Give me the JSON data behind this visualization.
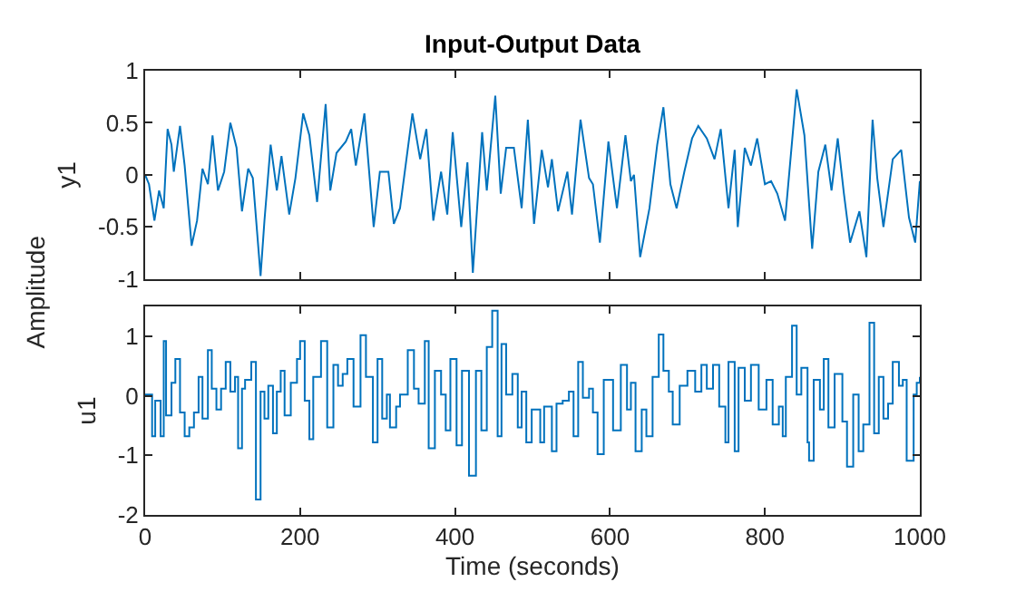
{
  "chart_data": [
    {
      "type": "line",
      "title": "Input-Output Data",
      "ylabel": "y1",
      "tick_labels": "y",
      "x": [
        0,
        5,
        12,
        18,
        24,
        29,
        34,
        37,
        45,
        51,
        60,
        67,
        74,
        81,
        87,
        94,
        102,
        110,
        118,
        125,
        133,
        139,
        149,
        154,
        162,
        170,
        176,
        186,
        194,
        204,
        212,
        222,
        233,
        239,
        247,
        259,
        266,
        272,
        283,
        295,
        303,
        314,
        321,
        329,
        345,
        355,
        363,
        372,
        382,
        390,
        397,
        408,
        416,
        423,
        435,
        441,
        452,
        459,
        466,
        476,
        486,
        494,
        502,
        512,
        520,
        525,
        533,
        545,
        551,
        562,
        573,
        578,
        587,
        598,
        609,
        620,
        627,
        631,
        639,
        651,
        661,
        669,
        678,
        686,
        696,
        706,
        714,
        725,
        735,
        743,
        753,
        761,
        765,
        774,
        782,
        790,
        800,
        808,
        816,
        826,
        841,
        851,
        861,
        869,
        878,
        886,
        894,
        902,
        910,
        922,
        931,
        939,
        945,
        953,
        965,
        976,
        986,
        994,
        1000
      ],
      "series": [
        {
          "color": "#0072bd",
          "values": [
            0,
            -0.09,
            -0.44,
            -0.15,
            -0.32,
            0.44,
            0.29,
            0.03,
            0.47,
            0.09,
            -0.68,
            -0.44,
            0.06,
            -0.09,
            0.38,
            -0.15,
            0.03,
            0.5,
            0.26,
            -0.35,
            0.06,
            -0.03,
            -0.97,
            -0.44,
            0.29,
            -0.15,
            0.18,
            -0.38,
            -0.03,
            0.59,
            0.38,
            -0.26,
            0.68,
            -0.15,
            0.21,
            0.32,
            0.44,
            0.09,
            0.59,
            -0.5,
            0.03,
            0.03,
            -0.47,
            -0.32,
            0.59,
            0.15,
            0.44,
            -0.44,
            0.03,
            -0.38,
            0.41,
            -0.5,
            0.12,
            -0.94,
            0.41,
            -0.15,
            0.76,
            -0.18,
            0.26,
            0.26,
            -0.32,
            0.53,
            -0.47,
            0.24,
            -0.12,
            0.15,
            -0.35,
            0.03,
            -0.38,
            0.53,
            -0.03,
            -0.09,
            -0.65,
            0.32,
            -0.32,
            0.38,
            -0.06,
            0,
            -0.79,
            -0.32,
            0.29,
            0.65,
            -0.09,
            -0.32,
            0.03,
            0.35,
            0.47,
            0.35,
            0.15,
            0.44,
            -0.32,
            0.24,
            -0.5,
            0.26,
            0.09,
            0.35,
            -0.09,
            -0.06,
            -0.18,
            -0.44,
            0.82,
            0.38,
            -0.71,
            0.03,
            0.29,
            -0.15,
            0.35,
            -0.18,
            -0.65,
            -0.35,
            -0.79,
            0.53,
            -0.03,
            -0.5,
            0.15,
            0.24,
            -0.41,
            -0.65,
            -0.06
          ]
        }
      ],
      "xlim": [
        0,
        1000
      ],
      "xticks": [
        {
          "value": 0,
          "label": null
        },
        {
          "value": 200,
          "label": null
        },
        {
          "value": 400,
          "label": null
        },
        {
          "value": 600,
          "label": null
        },
        {
          "value": 800,
          "label": null
        },
        {
          "value": 1000,
          "label": null
        }
      ],
      "ylim": [
        -1,
        1
      ],
      "yticks": [
        -1,
        -0.5,
        0,
        0.5,
        1
      ]
    },
    {
      "type": "step",
      "ylabel": "u1",
      "xlabel": "Time (seconds)",
      "annotations": [
        "Amplitude"
      ],
      "x": [
        0,
        5,
        9,
        13,
        20,
        24,
        27,
        34,
        39,
        45,
        51,
        57,
        63,
        69,
        74,
        81,
        86,
        92,
        98,
        104,
        110,
        116,
        120,
        125,
        129,
        137,
        143,
        149,
        154,
        159,
        165,
        170,
        175,
        180,
        188,
        196,
        200,
        206,
        212,
        217,
        227,
        235,
        243,
        249,
        255,
        261,
        269,
        278,
        285,
        294,
        300,
        306,
        312,
        316,
        324,
        329,
        339,
        347,
        353,
        361,
        366,
        374,
        382,
        388,
        394,
        402,
        409,
        418,
        427,
        434,
        441,
        448,
        455,
        460,
        466,
        474,
        481,
        486,
        492,
        499,
        510,
        515,
        525,
        531,
        539,
        547,
        553,
        559,
        565,
        573,
        578,
        584,
        592,
        604,
        614,
        622,
        627,
        633,
        641,
        647,
        655,
        663,
        669,
        676,
        681,
        690,
        700,
        710,
        718,
        725,
        733,
        741,
        749,
        753,
        761,
        766,
        774,
        782,
        792,
        802,
        810,
        818,
        823,
        827,
        835,
        841,
        847,
        855,
        857,
        863,
        871,
        876,
        882,
        890,
        900,
        906,
        914,
        921,
        927,
        935,
        941,
        947,
        953,
        959,
        965,
        973,
        978,
        983,
        992,
        996,
        1000
      ],
      "series": [
        {
          "color": "#0072bd",
          "values": [
            0.02,
            0.02,
            -0.68,
            -0.08,
            -0.68,
            0.92,
            -0.33,
            0.22,
            0.62,
            -0.28,
            -0.68,
            -0.53,
            -0.28,
            0.32,
            -0.38,
            0.77,
            0.12,
            -0.23,
            0.12,
            0.57,
            0.07,
            0.32,
            -0.88,
            0.12,
            0.27,
            0.57,
            -1.74,
            0.07,
            -0.38,
            0.17,
            -0.63,
            0.07,
            0.42,
            -0.33,
            0.22,
            0.62,
            0.92,
            -0.08,
            -0.73,
            0.32,
            0.92,
            -0.53,
            0.52,
            0.17,
            0.37,
            0.62,
            -0.18,
            1.02,
            0.32,
            -0.78,
            0.62,
            -0.38,
            0.02,
            -0.53,
            -0.18,
            0.02,
            0.77,
            0.12,
            -0.13,
            0.92,
            -0.88,
            0.42,
            0.02,
            -0.58,
            0.62,
            -0.83,
            0.42,
            -1.34,
            0.42,
            -0.58,
            0.82,
            1.43,
            -0.68,
            0.87,
            0.02,
            0.37,
            -0.53,
            0.07,
            -0.78,
            -0.23,
            -0.78,
            -0.18,
            -0.93,
            -0.13,
            -0.08,
            0.07,
            -0.68,
            0.57,
            -0.03,
            0.12,
            -0.28,
            -0.98,
            0.27,
            -0.58,
            0.52,
            -0.23,
            0.22,
            -0.93,
            -0.23,
            -0.68,
            0.32,
            1.03,
            0.42,
            0.07,
            -0.48,
            0.17,
            0.42,
            0.07,
            0.52,
            0.12,
            0.52,
            -0.18,
            -0.78,
            0.57,
            -0.93,
            0.47,
            -0.08,
            0.52,
            -0.23,
            0.27,
            -0.48,
            -0.18,
            -0.68,
            0.32,
            1.18,
            0.02,
            0.47,
            -0.78,
            -1.09,
            0.27,
            -0.23,
            0.62,
            -0.53,
            0.37,
            -0.43,
            -1.19,
            0.02,
            -0.93,
            -0.48,
            1.23,
            -0.63,
            0.32,
            -0.38,
            -0.13,
            0.57,
            0.17,
            0.27,
            -1.09,
            0.02,
            0.22,
            0.32
          ]
        }
      ],
      "xlim": [
        0,
        1000
      ],
      "xticks": [
        0,
        200,
        400,
        600,
        800,
        1000
      ],
      "ylim": [
        -2,
        1.5
      ],
      "yticks": [
        -2,
        -1,
        0,
        1
      ]
    }
  ]
}
